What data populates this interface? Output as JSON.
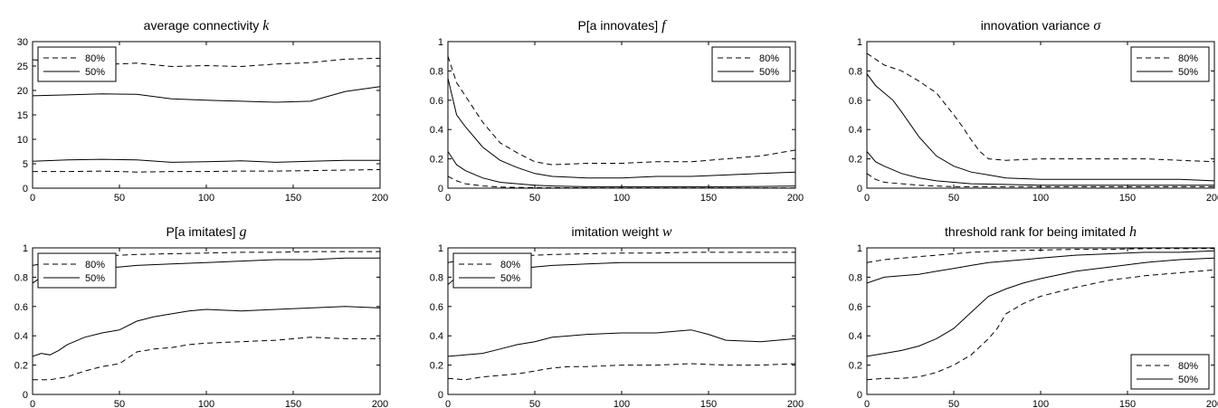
{
  "figure": {
    "panel_count": 6
  },
  "chart_data": [
    {
      "type": "line",
      "title": "average connectivity k",
      "title_text": "average connectivity ",
      "title_var": "k",
      "xlim": [
        0,
        200
      ],
      "ylim": [
        0,
        30
      ],
      "xticks": [
        0,
        50,
        100,
        150,
        200
      ],
      "yticks": [
        0,
        5,
        10,
        15,
        20,
        25,
        30
      ],
      "grid": false,
      "legend": {
        "position": "top-left",
        "entries": [
          "80%",
          "50%"
        ]
      },
      "series": [
        {
          "legend": "80%",
          "style": "dashed",
          "bound": "upper",
          "x": [
            0,
            20,
            40,
            60,
            80,
            100,
            120,
            140,
            160,
            180,
            200
          ],
          "y": [
            26.3,
            25.7,
            25.3,
            25.6,
            24.9,
            25.1,
            24.9,
            25.4,
            25.7,
            26.4,
            26.6
          ]
        },
        {
          "legend": "50%",
          "style": "solid",
          "bound": "upper",
          "x": [
            0,
            20,
            40,
            60,
            80,
            100,
            120,
            140,
            160,
            180,
            200
          ],
          "y": [
            18.9,
            19.1,
            19.3,
            19.2,
            18.3,
            18.0,
            17.8,
            17.6,
            17.8,
            19.8,
            20.8
          ]
        },
        {
          "legend": "50%",
          "style": "solid",
          "bound": "lower",
          "x": [
            0,
            20,
            40,
            60,
            80,
            100,
            120,
            140,
            160,
            180,
            200
          ],
          "y": [
            5.5,
            5.8,
            5.9,
            5.8,
            5.3,
            5.4,
            5.6,
            5.3,
            5.5,
            5.7,
            5.7
          ]
        },
        {
          "legend": "80%",
          "style": "dashed",
          "bound": "lower",
          "x": [
            0,
            20,
            40,
            60,
            80,
            100,
            120,
            140,
            160,
            180,
            200
          ],
          "y": [
            3.4,
            3.4,
            3.5,
            3.3,
            3.4,
            3.4,
            3.5,
            3.5,
            3.6,
            3.7,
            3.8
          ]
        }
      ]
    },
    {
      "type": "line",
      "title": "P[a innovates] f",
      "title_text": "P[a innovates] ",
      "title_var": "f",
      "xlim": [
        0,
        200
      ],
      "ylim": [
        0,
        1
      ],
      "xticks": [
        0,
        50,
        100,
        150,
        200
      ],
      "yticks": [
        0,
        0.2,
        0.4,
        0.6,
        0.8,
        1
      ],
      "grid": false,
      "legend": {
        "position": "top-right",
        "entries": [
          "80%",
          "50%"
        ]
      },
      "series": [
        {
          "legend": "80%",
          "style": "dashed",
          "bound": "upper",
          "x": [
            0,
            5,
            10,
            20,
            30,
            40,
            50,
            60,
            80,
            100,
            120,
            140,
            160,
            180,
            200
          ],
          "y": [
            0.9,
            0.72,
            0.63,
            0.45,
            0.31,
            0.24,
            0.18,
            0.16,
            0.17,
            0.17,
            0.18,
            0.18,
            0.2,
            0.22,
            0.26
          ]
        },
        {
          "legend": "50%",
          "style": "solid",
          "bound": "upper",
          "x": [
            0,
            5,
            10,
            20,
            30,
            40,
            50,
            60,
            80,
            100,
            120,
            140,
            160,
            180,
            200
          ],
          "y": [
            0.75,
            0.5,
            0.42,
            0.28,
            0.19,
            0.14,
            0.1,
            0.08,
            0.07,
            0.07,
            0.08,
            0.08,
            0.09,
            0.1,
            0.11
          ]
        },
        {
          "legend": "50%",
          "style": "solid",
          "bound": "lower",
          "x": [
            0,
            5,
            10,
            20,
            30,
            40,
            50,
            60,
            80,
            100,
            120,
            140,
            160,
            180,
            200
          ],
          "y": [
            0.25,
            0.16,
            0.12,
            0.07,
            0.04,
            0.03,
            0.02,
            0.015,
            0.01,
            0.01,
            0.01,
            0.01,
            0.01,
            0.012,
            0.015
          ]
        },
        {
          "legend": "80%",
          "style": "dashed",
          "bound": "lower",
          "x": [
            0,
            5,
            10,
            20,
            30,
            40,
            50,
            60,
            80,
            100,
            120,
            140,
            160,
            180,
            200
          ],
          "y": [
            0.08,
            0.05,
            0.03,
            0.015,
            0.008,
            0.005,
            0.004,
            0.003,
            0.002,
            0.002,
            0.002,
            0.002,
            0.002,
            0.002,
            0.002
          ]
        }
      ]
    },
    {
      "type": "line",
      "title": "innovation variance σ",
      "title_text": "innovation variance ",
      "title_var": "σ",
      "xlim": [
        0,
        200
      ],
      "ylim": [
        0,
        1
      ],
      "xticks": [
        0,
        50,
        100,
        150,
        200
      ],
      "yticks": [
        0,
        0.2,
        0.4,
        0.6,
        0.8,
        1
      ],
      "grid": false,
      "legend": {
        "position": "top-right",
        "entries": [
          "80%",
          "50%"
        ]
      },
      "series": [
        {
          "legend": "80%",
          "style": "dashed",
          "bound": "upper",
          "x": [
            0,
            10,
            20,
            30,
            40,
            50,
            55,
            60,
            65,
            70,
            80,
            100,
            120,
            140,
            160,
            180,
            200
          ],
          "y": [
            0.92,
            0.84,
            0.8,
            0.73,
            0.65,
            0.5,
            0.42,
            0.33,
            0.25,
            0.2,
            0.19,
            0.2,
            0.2,
            0.2,
            0.2,
            0.19,
            0.18
          ]
        },
        {
          "legend": "50%",
          "style": "solid",
          "bound": "upper",
          "x": [
            0,
            5,
            10,
            15,
            20,
            30,
            40,
            50,
            60,
            70,
            80,
            100,
            120,
            140,
            160,
            180,
            200
          ],
          "y": [
            0.78,
            0.7,
            0.65,
            0.6,
            0.52,
            0.35,
            0.22,
            0.15,
            0.11,
            0.09,
            0.07,
            0.06,
            0.06,
            0.06,
            0.06,
            0.06,
            0.05
          ]
        },
        {
          "legend": "50%",
          "style": "solid",
          "bound": "lower",
          "x": [
            0,
            5,
            10,
            20,
            30,
            40,
            50,
            60,
            80,
            100,
            120,
            140,
            160,
            180,
            200
          ],
          "y": [
            0.25,
            0.18,
            0.15,
            0.1,
            0.07,
            0.05,
            0.04,
            0.03,
            0.025,
            0.02,
            0.02,
            0.02,
            0.02,
            0.02,
            0.02
          ]
        },
        {
          "legend": "80%",
          "style": "dashed",
          "bound": "lower",
          "x": [
            0,
            5,
            10,
            20,
            30,
            40,
            50,
            60,
            80,
            100,
            120,
            140,
            160,
            180,
            200
          ],
          "y": [
            0.1,
            0.06,
            0.04,
            0.03,
            0.02,
            0.015,
            0.01,
            0.01,
            0.01,
            0.01,
            0.01,
            0.01,
            0.01,
            0.01,
            0.01
          ]
        }
      ]
    },
    {
      "type": "line",
      "title": "P[a imitates] g",
      "title_text": "P[a imitates] ",
      "title_var": "g",
      "xlim": [
        0,
        200
      ],
      "ylim": [
        0,
        1
      ],
      "xticks": [
        0,
        50,
        100,
        150,
        200
      ],
      "yticks": [
        0,
        0.2,
        0.4,
        0.6,
        0.8,
        1
      ],
      "grid": false,
      "legend": {
        "position": "top-left",
        "entries": [
          "80%",
          "50%"
        ]
      },
      "series": [
        {
          "legend": "80%",
          "style": "dashed",
          "bound": "upper",
          "x": [
            0,
            10,
            20,
            30,
            40,
            50,
            60,
            80,
            100,
            120,
            140,
            160,
            180,
            200
          ],
          "y": [
            0.88,
            0.9,
            0.92,
            0.93,
            0.94,
            0.95,
            0.955,
            0.96,
            0.965,
            0.97,
            0.97,
            0.975,
            0.975,
            0.975
          ]
        },
        {
          "legend": "50%",
          "style": "solid",
          "bound": "upper",
          "x": [
            0,
            5,
            10,
            20,
            30,
            40,
            50,
            60,
            80,
            100,
            120,
            140,
            160,
            180,
            200
          ],
          "y": [
            0.76,
            0.8,
            0.82,
            0.84,
            0.85,
            0.86,
            0.87,
            0.88,
            0.89,
            0.9,
            0.91,
            0.92,
            0.92,
            0.93,
            0.93
          ]
        },
        {
          "legend": "50%",
          "style": "solid",
          "bound": "lower",
          "x": [
            0,
            5,
            10,
            15,
            20,
            30,
            40,
            50,
            60,
            70,
            80,
            90,
            100,
            120,
            140,
            160,
            180,
            200
          ],
          "y": [
            0.26,
            0.28,
            0.27,
            0.3,
            0.34,
            0.39,
            0.42,
            0.44,
            0.5,
            0.53,
            0.55,
            0.57,
            0.58,
            0.57,
            0.58,
            0.59,
            0.6,
            0.59
          ]
        },
        {
          "legend": "80%",
          "style": "dashed",
          "bound": "lower",
          "x": [
            0,
            10,
            20,
            30,
            40,
            50,
            60,
            70,
            80,
            90,
            100,
            120,
            140,
            160,
            180,
            200
          ],
          "y": [
            0.1,
            0.1,
            0.12,
            0.16,
            0.19,
            0.21,
            0.29,
            0.31,
            0.32,
            0.34,
            0.35,
            0.36,
            0.37,
            0.39,
            0.38,
            0.38
          ]
        }
      ]
    },
    {
      "type": "line",
      "title": "imitation weight w",
      "title_text": "imitation weight ",
      "title_var": "w",
      "xlim": [
        0,
        200
      ],
      "ylim": [
        0,
        1
      ],
      "xticks": [
        0,
        50,
        100,
        150,
        200
      ],
      "yticks": [
        0,
        0.2,
        0.4,
        0.6,
        0.8,
        1
      ],
      "grid": false,
      "legend": {
        "position": "top-left",
        "entries": [
          "80%",
          "50%"
        ]
      },
      "series": [
        {
          "legend": "80%",
          "style": "dashed",
          "bound": "upper",
          "x": [
            0,
            10,
            20,
            30,
            40,
            50,
            60,
            80,
            100,
            120,
            140,
            160,
            180,
            200
          ],
          "y": [
            0.9,
            0.92,
            0.93,
            0.94,
            0.945,
            0.95,
            0.955,
            0.96,
            0.965,
            0.965,
            0.97,
            0.97,
            0.97,
            0.97
          ]
        },
        {
          "legend": "50%",
          "style": "solid",
          "bound": "upper",
          "x": [
            0,
            5,
            10,
            20,
            30,
            40,
            50,
            60,
            80,
            100,
            120,
            140,
            160,
            180,
            200
          ],
          "y": [
            0.75,
            0.8,
            0.82,
            0.84,
            0.85,
            0.86,
            0.87,
            0.88,
            0.89,
            0.9,
            0.9,
            0.9,
            0.9,
            0.9,
            0.9
          ]
        },
        {
          "legend": "50%",
          "style": "solid",
          "bound": "lower",
          "x": [
            0,
            10,
            20,
            30,
            40,
            50,
            60,
            70,
            80,
            100,
            120,
            140,
            150,
            160,
            180,
            200
          ],
          "y": [
            0.26,
            0.27,
            0.28,
            0.31,
            0.34,
            0.36,
            0.39,
            0.4,
            0.41,
            0.42,
            0.42,
            0.44,
            0.41,
            0.37,
            0.36,
            0.38
          ]
        },
        {
          "legend": "80%",
          "style": "dashed",
          "bound": "lower",
          "x": [
            0,
            10,
            20,
            30,
            40,
            50,
            60,
            70,
            80,
            100,
            120,
            140,
            160,
            180,
            200
          ],
          "y": [
            0.11,
            0.1,
            0.12,
            0.13,
            0.14,
            0.16,
            0.18,
            0.19,
            0.19,
            0.2,
            0.2,
            0.21,
            0.2,
            0.2,
            0.21
          ]
        }
      ]
    },
    {
      "type": "line",
      "title": "threshold rank for being imitated h",
      "title_text": "threshold rank for being imitated ",
      "title_var": "h",
      "xlim": [
        0,
        200
      ],
      "ylim": [
        0,
        1
      ],
      "xticks": [
        0,
        50,
        100,
        150,
        200
      ],
      "yticks": [
        0,
        0.2,
        0.4,
        0.6,
        0.8,
        1
      ],
      "grid": false,
      "legend": {
        "position": "bottom-right",
        "entries": [
          "80%",
          "50%"
        ]
      },
      "series": [
        {
          "legend": "80%",
          "style": "dashed",
          "bound": "upper",
          "x": [
            0,
            10,
            20,
            30,
            40,
            50,
            60,
            80,
            100,
            120,
            140,
            160,
            180,
            200
          ],
          "y": [
            0.9,
            0.92,
            0.93,
            0.94,
            0.95,
            0.96,
            0.97,
            0.98,
            0.985,
            0.99,
            0.99,
            0.995,
            0.995,
            0.995
          ]
        },
        {
          "legend": "50%",
          "style": "solid",
          "bound": "upper",
          "x": [
            0,
            10,
            20,
            30,
            40,
            50,
            60,
            70,
            80,
            100,
            120,
            140,
            160,
            180,
            200
          ],
          "y": [
            0.76,
            0.8,
            0.81,
            0.82,
            0.84,
            0.86,
            0.88,
            0.9,
            0.91,
            0.93,
            0.95,
            0.96,
            0.97,
            0.97,
            0.98
          ]
        },
        {
          "legend": "50%",
          "style": "solid",
          "bound": "lower",
          "x": [
            0,
            10,
            20,
            30,
            40,
            50,
            60,
            70,
            80,
            90,
            100,
            120,
            140,
            160,
            180,
            200
          ],
          "y": [
            0.26,
            0.28,
            0.3,
            0.33,
            0.38,
            0.45,
            0.56,
            0.67,
            0.72,
            0.76,
            0.79,
            0.84,
            0.87,
            0.9,
            0.92,
            0.93
          ]
        },
        {
          "legend": "80%",
          "style": "dashed",
          "bound": "lower",
          "x": [
            0,
            10,
            20,
            30,
            40,
            50,
            60,
            70,
            75,
            80,
            90,
            100,
            120,
            140,
            160,
            180,
            200
          ],
          "y": [
            0.1,
            0.11,
            0.11,
            0.12,
            0.15,
            0.2,
            0.27,
            0.38,
            0.45,
            0.55,
            0.62,
            0.67,
            0.73,
            0.78,
            0.81,
            0.83,
            0.85
          ]
        }
      ]
    }
  ]
}
